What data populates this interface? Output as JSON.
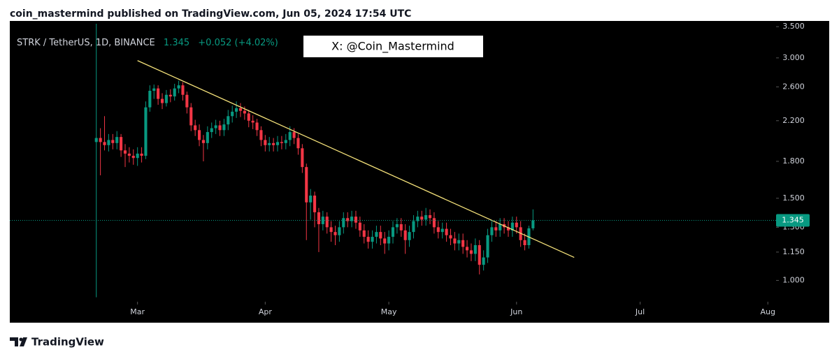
{
  "header": "coin_mastermind published on TradingView.com, Jun 05, 2024 17:54 UTC",
  "watermark": "X: @Coin_Mastermind",
  "footer": "TradingView",
  "chart_data": {
    "type": "candlestick",
    "title": "STRK / TetherUS, 1D, BINANCE",
    "last_price": 1.345,
    "change": "+0.052 (+4.02%)",
    "up_color": "#089981",
    "down_color": "#f23645",
    "log_scale": true,
    "grid": false,
    "x": [
      0,
      1,
      2,
      3,
      4,
      5,
      6,
      7,
      8,
      9,
      10,
      11,
      12,
      13,
      14,
      15,
      16,
      17,
      18,
      19,
      20,
      21,
      22,
      23,
      24,
      25,
      26,
      27,
      28,
      29,
      30,
      31,
      32,
      33,
      34,
      35,
      36,
      37,
      38,
      39,
      40,
      41,
      42,
      43,
      44,
      45,
      46,
      47,
      48,
      49,
      50,
      51,
      52,
      53,
      54,
      55,
      56,
      57,
      58,
      59,
      60,
      61,
      62,
      63,
      64,
      65,
      66,
      67,
      68,
      69,
      70,
      71,
      72,
      73,
      74,
      75,
      76,
      77,
      78,
      79,
      80,
      81,
      82,
      83,
      84,
      85,
      86,
      87,
      88,
      89,
      90,
      91,
      92,
      93,
      94,
      95,
      96,
      97,
      98,
      99,
      100,
      101,
      102,
      103,
      104,
      105,
      106
    ],
    "open": [
      1.98,
      2.02,
      1.98,
      1.95,
      2.0,
      1.97,
      2.03,
      1.9,
      1.87,
      1.85,
      1.83,
      1.87,
      1.85,
      2.35,
      2.55,
      2.58,
      2.45,
      2.4,
      2.5,
      2.48,
      2.58,
      2.62,
      2.5,
      2.35,
      2.15,
      2.1,
      2.0,
      1.97,
      2.08,
      2.12,
      2.15,
      2.1,
      2.16,
      2.25,
      2.3,
      2.34,
      2.31,
      2.28,
      2.2,
      2.18,
      2.1,
      2.0,
      1.95,
      1.97,
      1.95,
      1.98,
      1.97,
      2.0,
      2.08,
      2.02,
      1.92,
      1.75,
      1.47,
      1.52,
      1.4,
      1.32,
      1.37,
      1.3,
      1.27,
      1.25,
      1.3,
      1.36,
      1.34,
      1.37,
      1.33,
      1.28,
      1.24,
      1.21,
      1.24,
      1.27,
      1.23,
      1.2,
      1.24,
      1.3,
      1.32,
      1.28,
      1.22,
      1.27,
      1.34,
      1.37,
      1.35,
      1.38,
      1.36,
      1.3,
      1.27,
      1.29,
      1.25,
      1.23,
      1.2,
      1.22,
      1.18,
      1.16,
      1.14,
      1.19,
      1.08,
      1.12,
      1.25,
      1.3,
      1.28,
      1.32,
      1.3,
      1.28,
      1.33,
      1.3,
      1.22,
      1.19,
      1.293
    ],
    "high": [
      3.55,
      2.12,
      2.25,
      2.06,
      2.06,
      2.09,
      2.06,
      1.96,
      1.93,
      1.91,
      1.93,
      1.93,
      2.42,
      2.62,
      2.63,
      2.62,
      2.52,
      2.56,
      2.57,
      2.64,
      2.68,
      2.66,
      2.54,
      2.4,
      2.21,
      2.16,
      2.05,
      2.14,
      2.18,
      2.21,
      2.2,
      2.22,
      2.32,
      2.37,
      2.42,
      2.4,
      2.36,
      2.32,
      2.26,
      2.22,
      2.14,
      2.05,
      2.03,
      2.02,
      2.04,
      2.04,
      2.06,
      2.14,
      2.12,
      2.06,
      1.96,
      1.78,
      1.57,
      1.55,
      1.43,
      1.41,
      1.4,
      1.34,
      1.31,
      1.34,
      1.4,
      1.4,
      1.41,
      1.41,
      1.37,
      1.32,
      1.28,
      1.28,
      1.31,
      1.31,
      1.27,
      1.28,
      1.34,
      1.36,
      1.36,
      1.32,
      1.31,
      1.38,
      1.41,
      1.41,
      1.43,
      1.42,
      1.4,
      1.34,
      1.33,
      1.33,
      1.29,
      1.27,
      1.26,
      1.26,
      1.22,
      1.2,
      1.23,
      1.22,
      1.16,
      1.29,
      1.34,
      1.34,
      1.36,
      1.36,
      1.34,
      1.37,
      1.37,
      1.34,
      1.26,
      1.31,
      1.42
    ],
    "low": [
      0.92,
      1.68,
      1.9,
      1.89,
      1.91,
      1.91,
      1.84,
      1.75,
      1.79,
      1.77,
      1.76,
      1.79,
      1.82,
      2.3,
      2.45,
      2.38,
      2.33,
      2.36,
      2.41,
      2.43,
      2.52,
      2.43,
      2.28,
      2.09,
      2.04,
      1.94,
      1.8,
      1.91,
      2.02,
      2.06,
      2.04,
      2.04,
      2.1,
      2.18,
      2.23,
      2.24,
      2.21,
      2.13,
      2.11,
      2.04,
      1.94,
      1.89,
      1.89,
      1.89,
      1.89,
      1.91,
      1.91,
      1.94,
      1.96,
      1.86,
      1.7,
      1.22,
      1.35,
      1.3,
      1.15,
      1.28,
      1.26,
      1.21,
      1.19,
      1.21,
      1.26,
      1.3,
      1.3,
      1.29,
      1.24,
      1.2,
      1.17,
      1.17,
      1.2,
      1.19,
      1.14,
      1.16,
      1.2,
      1.26,
      1.24,
      1.14,
      1.18,
      1.23,
      1.3,
      1.31,
      1.31,
      1.32,
      1.26,
      1.23,
      1.23,
      1.21,
      1.19,
      1.16,
      1.16,
      1.14,
      1.12,
      1.1,
      1.1,
      1.03,
      1.05,
      1.09,
      1.21,
      1.24,
      1.24,
      1.26,
      1.24,
      1.24,
      1.26,
      1.18,
      1.16,
      1.17,
      1.28
    ],
    "close": [
      2.02,
      1.98,
      1.95,
      2.0,
      1.97,
      2.03,
      1.9,
      1.87,
      1.85,
      1.83,
      1.87,
      1.85,
      2.35,
      2.55,
      2.58,
      2.45,
      2.4,
      2.5,
      2.48,
      2.58,
      2.62,
      2.5,
      2.35,
      2.15,
      2.1,
      2.0,
      1.97,
      2.08,
      2.12,
      2.15,
      2.1,
      2.16,
      2.25,
      2.3,
      2.34,
      2.31,
      2.28,
      2.2,
      2.18,
      2.1,
      2.0,
      1.95,
      1.97,
      1.95,
      1.98,
      1.97,
      2.0,
      2.08,
      2.02,
      1.92,
      1.75,
      1.47,
      1.52,
      1.4,
      1.32,
      1.37,
      1.3,
      1.27,
      1.25,
      1.3,
      1.36,
      1.34,
      1.37,
      1.33,
      1.28,
      1.24,
      1.21,
      1.24,
      1.27,
      1.23,
      1.2,
      1.24,
      1.3,
      1.32,
      1.28,
      1.22,
      1.27,
      1.34,
      1.37,
      1.35,
      1.38,
      1.36,
      1.3,
      1.27,
      1.29,
      1.25,
      1.23,
      1.2,
      1.22,
      1.18,
      1.16,
      1.14,
      1.19,
      1.08,
      1.12,
      1.25,
      1.3,
      1.28,
      1.32,
      1.3,
      1.28,
      1.33,
      1.3,
      1.22,
      1.19,
      1.293,
      1.345
    ],
    "trendline": {
      "x": [
        10,
        116
      ],
      "y": [
        2.96,
        1.12
      ],
      "color": "#f5e27a"
    },
    "xlim": [
      -21,
      165
    ],
    "xticks": [
      {
        "value": 10,
        "label": "Mar"
      },
      {
        "value": 41,
        "label": "Apr"
      },
      {
        "value": 71,
        "label": "May"
      },
      {
        "value": 102,
        "label": "Jun"
      },
      {
        "value": 132,
        "label": "Jul"
      },
      {
        "value": 163,
        "label": "Aug"
      }
    ],
    "ylim": [
      0.9,
      3.6
    ],
    "yticks": [
      {
        "value": 1,
        "label": "1.000"
      },
      {
        "value": 1.15,
        "label": "1.150"
      },
      {
        "value": 1.3,
        "label": "1.300"
      },
      {
        "value": 1.5,
        "label": "1.500"
      },
      {
        "value": 1.8,
        "label": "1.800"
      },
      {
        "value": 2.2,
        "label": "2.200"
      },
      {
        "value": 2.6,
        "label": "2.600"
      },
      {
        "value": 3,
        "label": "3.000"
      },
      {
        "value": 3.5,
        "label": "3.500"
      }
    ]
  }
}
